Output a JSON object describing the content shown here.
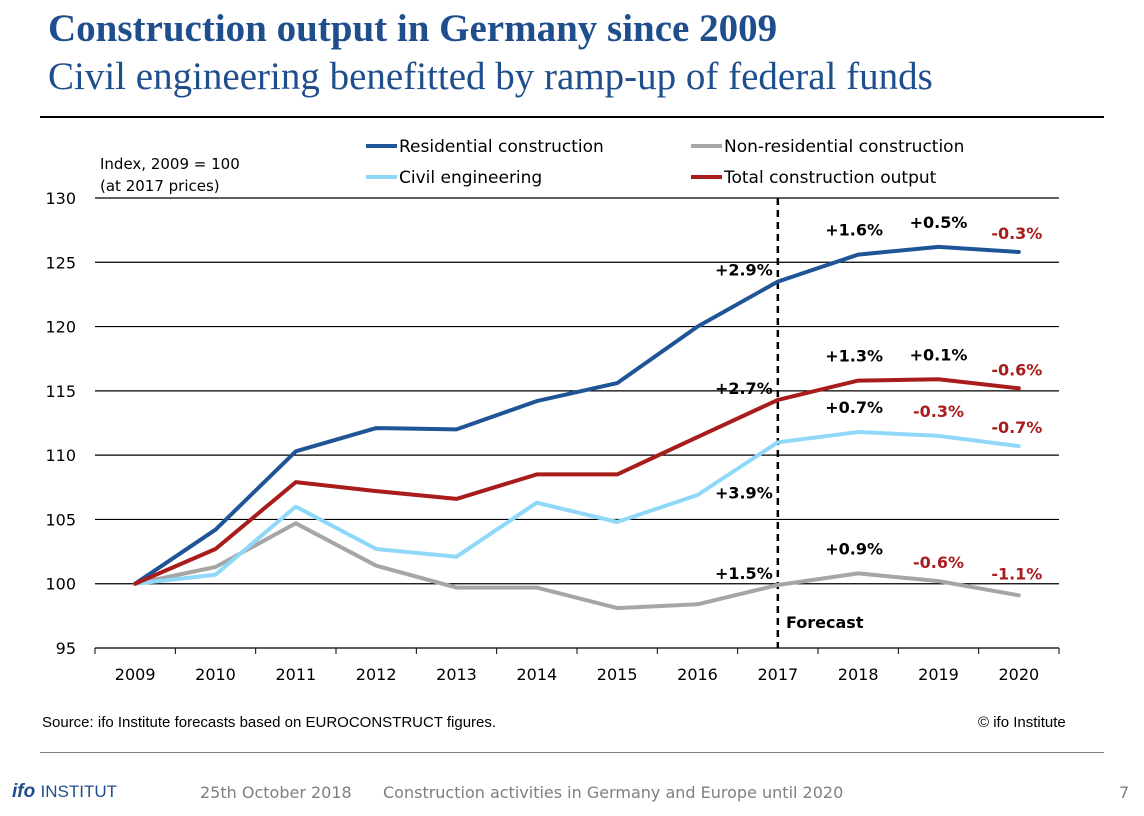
{
  "header": {
    "title": "Construction output in Germany since 2009",
    "subtitle": "Civil engineering benefitted by ramp-up of federal funds"
  },
  "chart_data": {
    "type": "line",
    "title": "",
    "ylabel_line1": "Index, 2009 = 100",
    "ylabel_line2": "(at 2017 prices)",
    "ylim": [
      95,
      130
    ],
    "yticks": [
      95,
      100,
      105,
      110,
      115,
      120,
      125,
      130
    ],
    "categories": [
      "2009",
      "2010",
      "2011",
      "2012",
      "2013",
      "2014",
      "2015",
      "2016",
      "2017",
      "2018",
      "2019",
      "2020"
    ],
    "grid": "horizontal",
    "legend_position": "top",
    "forecast_label": "Forecast",
    "forecast_start": "2017",
    "series": [
      {
        "name": "Residential construction",
        "color": "#1f5597",
        "values": [
          100,
          104.2,
          110.3,
          112.1,
          112.0,
          114.2,
          115.6,
          120.0,
          123.5,
          125.6,
          126.2,
          125.8
        ]
      },
      {
        "name": "Non-residential construction",
        "color": "#a6a6a6",
        "values": [
          100,
          101.3,
          104.7,
          101.4,
          99.7,
          99.7,
          98.1,
          98.4,
          99.9,
          100.8,
          100.2,
          99.1
        ]
      },
      {
        "name": "Civil engineering",
        "color": "#8fd8f8",
        "values": [
          100,
          100.7,
          106.0,
          102.7,
          102.1,
          106.3,
          104.8,
          106.9,
          111.0,
          111.8,
          111.5,
          110.7
        ]
      },
      {
        "name": "Total construction output",
        "color": "#a81c1c",
        "values": [
          100,
          102.7,
          107.9,
          107.2,
          106.6,
          108.5,
          108.5,
          111.4,
          114.3,
          115.8,
          115.9,
          115.2
        ]
      }
    ],
    "annotations": [
      {
        "text": "+2.9%",
        "color": "#000000",
        "series": "Residential construction",
        "x": "2017"
      },
      {
        "text": "+1.6%",
        "color": "#000000",
        "series": "Residential construction",
        "x": "2018"
      },
      {
        "text": "+0.5%",
        "color": "#000000",
        "series": "Residential construction",
        "x": "2019"
      },
      {
        "text": "-0.3%",
        "color": "#a81c1c",
        "series": "Residential construction",
        "x": "2020"
      },
      {
        "text": "+2.7%",
        "color": "#000000",
        "series": "Total construction output",
        "x": "2017"
      },
      {
        "text": "+1.3%",
        "color": "#000000",
        "series": "Total construction output",
        "x": "2018"
      },
      {
        "text": "+0.1%",
        "color": "#000000",
        "series": "Total construction output",
        "x": "2019"
      },
      {
        "text": "-0.6%",
        "color": "#a81c1c",
        "series": "Total construction output",
        "x": "2020"
      },
      {
        "text": "+3.9%",
        "color": "#000000",
        "series": "Civil engineering",
        "x": "2017"
      },
      {
        "text": "+0.7%",
        "color": "#000000",
        "series": "Civil engineering",
        "x": "2018"
      },
      {
        "text": "-0.3%",
        "color": "#a81c1c",
        "series": "Civil engineering",
        "x": "2019"
      },
      {
        "text": "-0.7%",
        "color": "#a81c1c",
        "series": "Civil engineering",
        "x": "2020"
      },
      {
        "text": "+1.5%",
        "color": "#000000",
        "series": "Non-residential construction",
        "x": "2017"
      },
      {
        "text": "+0.9%",
        "color": "#000000",
        "series": "Non-residential construction",
        "x": "2018"
      },
      {
        "text": "-0.6%",
        "color": "#a81c1c",
        "series": "Non-residential construction",
        "x": "2019"
      },
      {
        "text": "-1.1%",
        "color": "#a81c1c",
        "series": "Non-residential construction",
        "x": "2020"
      }
    ]
  },
  "source_note": "Source: ifo Institute forecasts based on EUROCONSTRUCT figures.",
  "copyright": "© ifo Institute",
  "footer": {
    "logo_ifo": "ifo",
    "logo_institut": "INSTITUT",
    "date": "25th October 2018",
    "presentation_title": "Construction activities in Germany and Europe until 2020",
    "page_number": "7"
  }
}
